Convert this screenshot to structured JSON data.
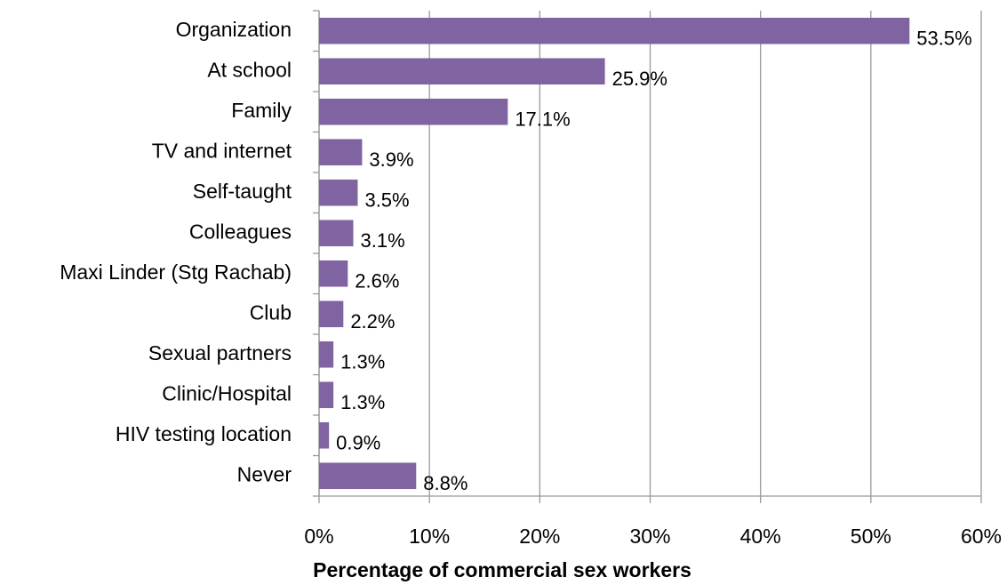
{
  "chart_data": {
    "type": "bar",
    "orientation": "horizontal",
    "x_label": "Percentage of commercial sex workers",
    "categories": [
      "Organization",
      "At school",
      "Family",
      "TV and internet",
      "Self-taught",
      "Colleagues",
      "Maxi Linder (Stg Rachab)",
      "Club",
      "Sexual partners",
      "Clinic/Hospital",
      "HIV testing location",
      "Never"
    ],
    "values": [
      53.5,
      25.9,
      17.1,
      3.9,
      3.5,
      3.1,
      2.6,
      2.2,
      1.3,
      1.3,
      0.9,
      8.8
    ],
    "value_labels": [
      "53.5%",
      "25.9%",
      "17.1%",
      "3.9%",
      "3.5%",
      "3.1%",
      "2.6%",
      "2.2%",
      "1.3%",
      "1.3%",
      "0.9%",
      "8.8%"
    ],
    "color": "#8064a2",
    "xlim": [
      0,
      60
    ],
    "xticks": [
      {
        "value": 0,
        "label": "0%"
      },
      {
        "value": 10,
        "label": "10%"
      },
      {
        "value": 20,
        "label": "20%"
      },
      {
        "value": 30,
        "label": "30%"
      },
      {
        "value": 40,
        "label": "40%"
      },
      {
        "value": 50,
        "label": "50%"
      },
      {
        "value": 60,
        "label": "60%"
      }
    ],
    "grid": true
  }
}
